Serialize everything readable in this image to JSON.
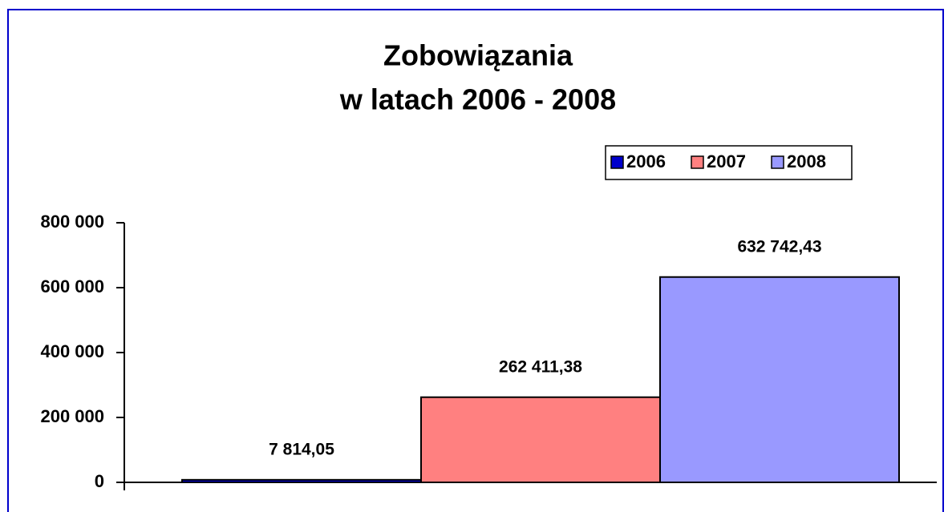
{
  "chart_data": {
    "type": "bar",
    "title": [
      "Zobowiązania",
      "w latach 2006 - 2008"
    ],
    "categories": [
      null
    ],
    "series": [
      {
        "name": "2006",
        "color": "#0000cc",
        "values": [
          7814.05
        ],
        "value_labels": [
          "7 814,05"
        ]
      },
      {
        "name": "2007",
        "color": "#ff8080",
        "values": [
          262411.38
        ],
        "value_labels": [
          "262 411,38"
        ]
      },
      {
        "name": "2008",
        "color": "#9999ff",
        "values": [
          632742.43
        ],
        "value_labels": [
          "632 742,43"
        ]
      }
    ],
    "ylim": [
      0,
      800000
    ],
    "yticks": [
      0,
      {
        "value": 200000,
        "label": "200 000"
      },
      {
        "value": 400000,
        "label": "400 000"
      },
      {
        "value": 600000,
        "label": "600 000"
      },
      {
        "value": 800000,
        "label": "800 000"
      }
    ],
    "legend": "top-right"
  }
}
